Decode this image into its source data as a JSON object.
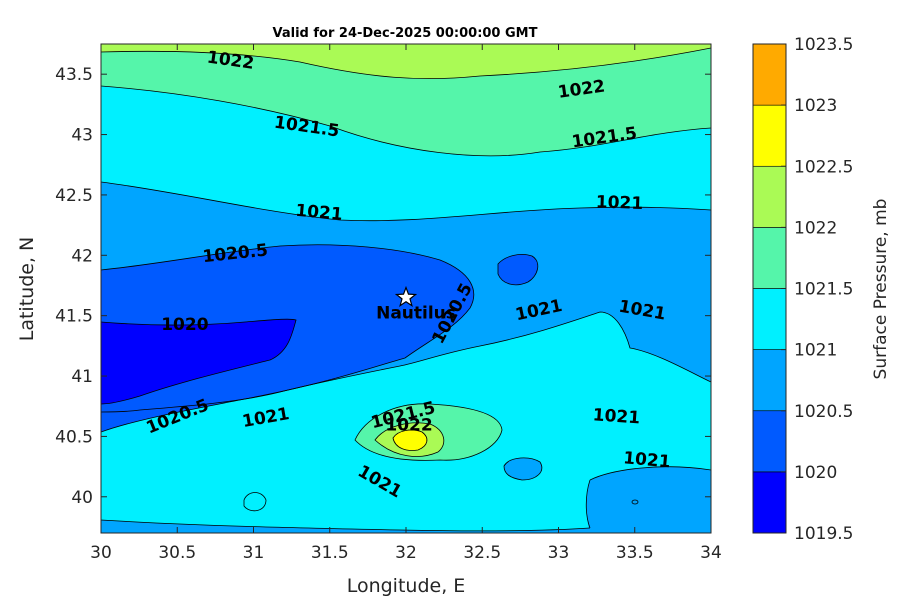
{
  "chart_data": {
    "type": "contour",
    "title": "Valid for 24-Dec-2025 00:00:00 GMT",
    "xlabel": "Longitude, E",
    "ylabel": "Latitude, N",
    "xlim": [
      30,
      34
    ],
    "ylim": [
      39.7,
      43.75
    ],
    "x_ticks": [
      "30",
      "30.5",
      "31",
      "31.5",
      "32",
      "32.5",
      "33",
      "33.5",
      "34"
    ],
    "y_ticks": [
      "40",
      "40.5",
      "41",
      "41.5",
      "42",
      "42.5",
      "43",
      "43.5"
    ],
    "colorbar": {
      "label": "Surface Pressure, mb",
      "levels": [
        1019.5,
        1020,
        1020.5,
        1021,
        1021.5,
        1022,
        1022.5,
        1023,
        1023.5
      ],
      "tick_labels": [
        "1019.5",
        "1020",
        "1020.5",
        "1021",
        "1021.5",
        "1022",
        "1022.5",
        "1023",
        "1023.5"
      ],
      "colors": [
        "#0000ff",
        "#005aff",
        "#00a5ff",
        "#00f0ff",
        "#55f5aa",
        "#aafa55",
        "#ffff00",
        "#ffaa00",
        "#ff5500"
      ]
    },
    "contour_labels": [
      {
        "text": "1022",
        "lon": 30.85,
        "lat": 43.62
      },
      {
        "text": "1022",
        "lon": 33.15,
        "lat": 43.38
      },
      {
        "text": "1021.5",
        "lon": 31.35,
        "lat": 43.07
      },
      {
        "text": "1021.5",
        "lon": 33.3,
        "lat": 42.98
      },
      {
        "text": "1021",
        "lon": 31.43,
        "lat": 42.36
      },
      {
        "text": "1021",
        "lon": 33.4,
        "lat": 42.44
      },
      {
        "text": "1020.5",
        "lon": 30.88,
        "lat": 42.02
      },
      {
        "text": "1020",
        "lon": 30.55,
        "lat": 41.43
      },
      {
        "text": "1020.5",
        "lon": 32.3,
        "lat": 41.52
      },
      {
        "text": "1021",
        "lon": 32.87,
        "lat": 41.55
      },
      {
        "text": "1021",
        "lon": 33.55,
        "lat": 41.55
      },
      {
        "text": "1020.5",
        "lon": 30.5,
        "lat": 40.67
      },
      {
        "text": "1021",
        "lon": 31.08,
        "lat": 40.66
      },
      {
        "text": "1021.5",
        "lon": 31.98,
        "lat": 40.68
      },
      {
        "text": "1022",
        "lon": 32.02,
        "lat": 40.6
      },
      {
        "text": "1021",
        "lon": 33.38,
        "lat": 40.67
      },
      {
        "text": "1021",
        "lon": 33.58,
        "lat": 40.31
      },
      {
        "text": "1021",
        "lon": 31.83,
        "lat": 40.13
      }
    ],
    "station": {
      "name": "Nautilus",
      "lon": 32.0,
      "lat": 41.65
    }
  }
}
